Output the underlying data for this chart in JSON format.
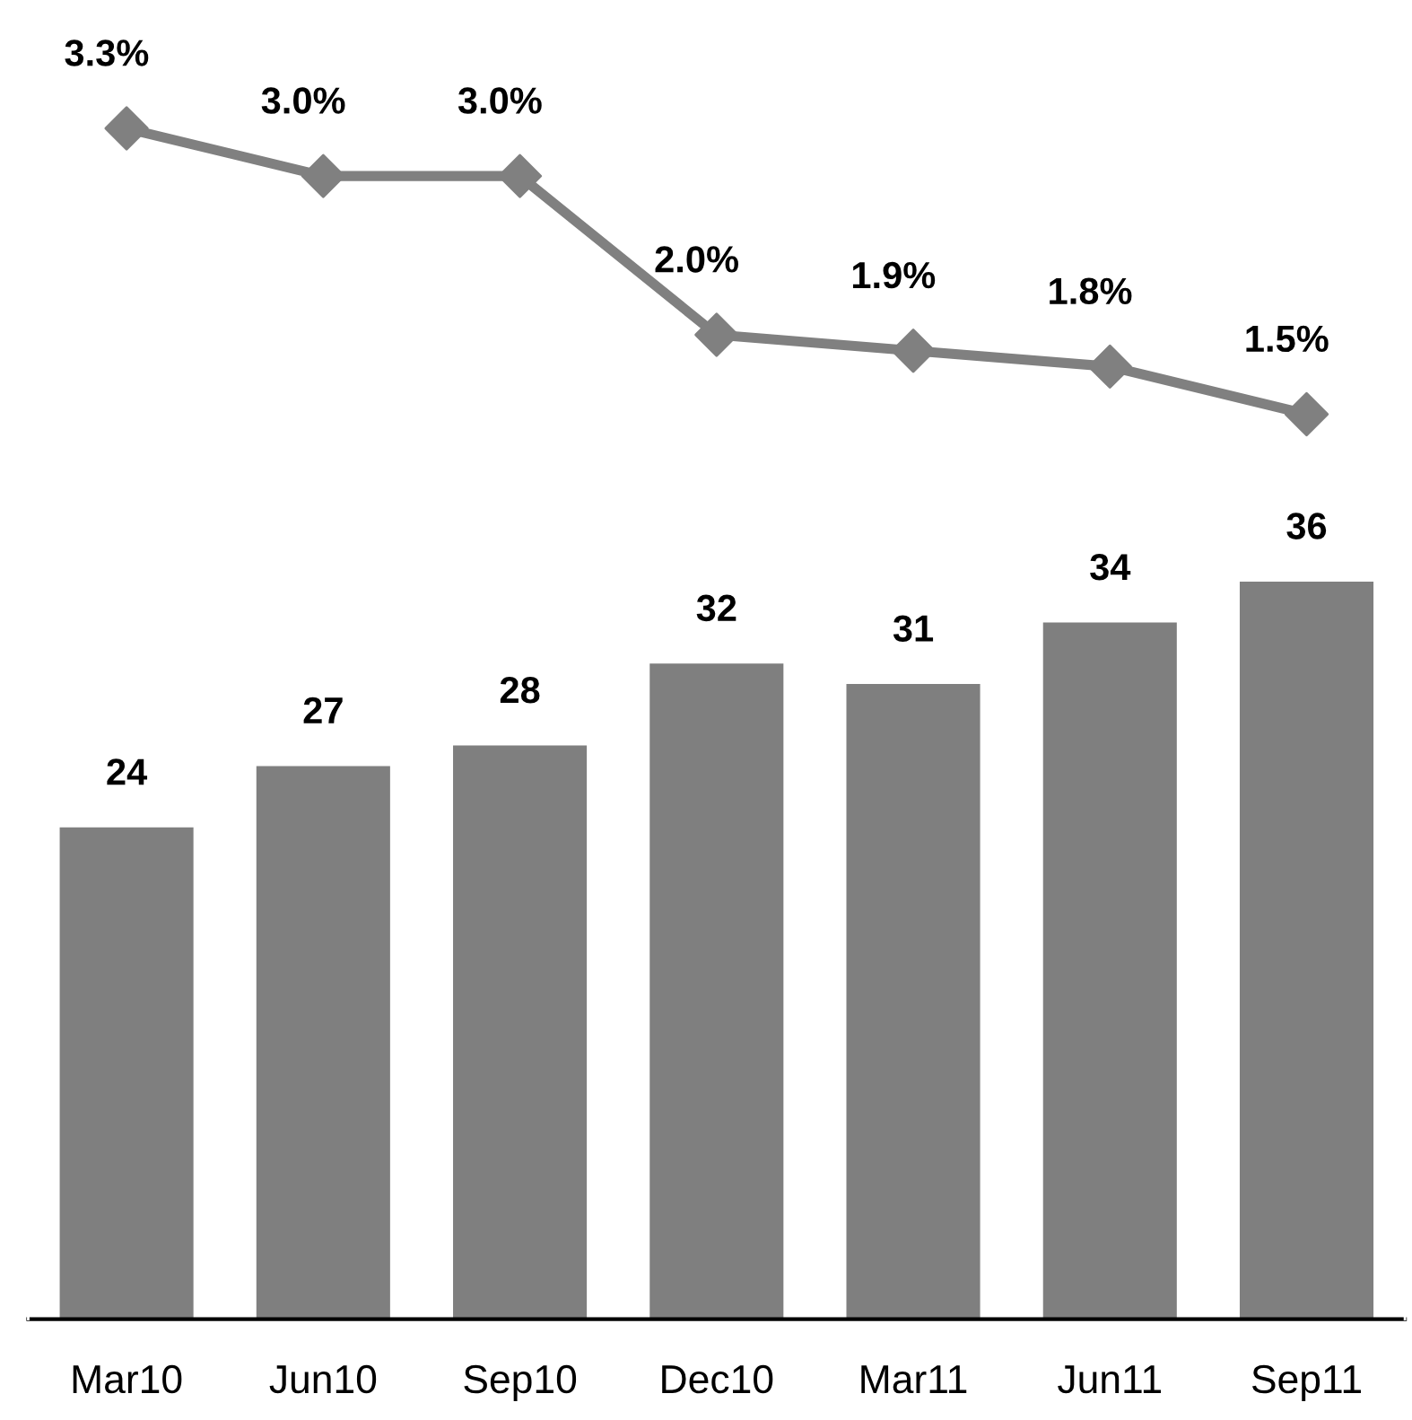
{
  "chart_data": {
    "type": "bar",
    "categories": [
      "Mar10",
      "Jun10",
      "Sep10",
      "Dec10",
      "Mar11",
      "Jun11",
      "Sep11"
    ],
    "series": [
      {
        "color": "#7f7f7f",
        "values": [
          24,
          27,
          28,
          32,
          31,
          34,
          36
        ],
        "value_labels": [
          "24",
          "27",
          "28",
          "32",
          "31",
          "34",
          "36"
        ]
      },
      {
        "type": "line",
        "axis": "y2",
        "color": "#808080",
        "marker": "diamond",
        "line_style": "solid",
        "values": [
          3.3,
          3.0,
          3.0,
          2.0,
          1.9,
          1.8,
          1.5
        ],
        "value_labels": [
          "3.3%",
          "3.0%",
          "3.0%",
          "2.0%",
          "1.9%",
          "1.8%",
          "1.5%"
        ]
      }
    ],
    "ylim": [
      0,
      63
    ],
    "y2lim": [
      -4.2,
      3.93
    ],
    "grid": false,
    "legend": false,
    "tick_labels": "x"
  }
}
